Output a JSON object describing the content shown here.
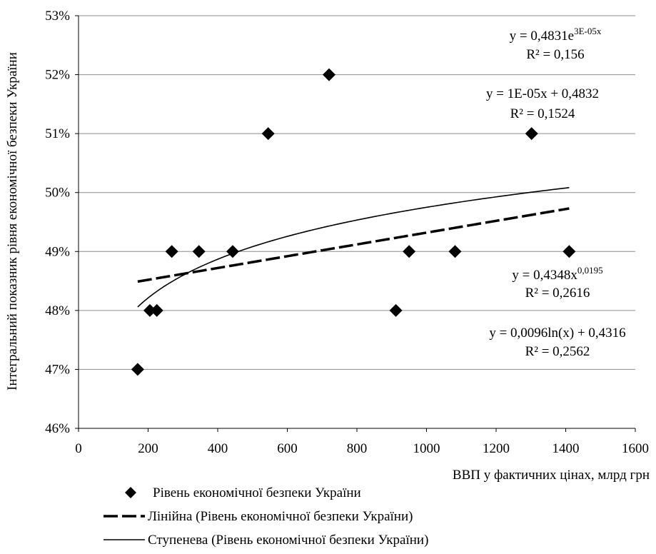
{
  "chart_data": {
    "type": "scatter",
    "title": "",
    "xlabel": "ВВП у фактичних цінах, млрд грн",
    "ylabel": "Інтегральний показник рівня економічної безпеки України",
    "xlim": [
      0,
      1600
    ],
    "ylim": [
      0.46,
      0.53
    ],
    "x_ticks": [
      0,
      200,
      400,
      600,
      800,
      1000,
      1200,
      1400,
      1600
    ],
    "x_tick_labels": [
      "0",
      "200",
      "400",
      "600",
      "800",
      "1000",
      "1200",
      "1400",
      "1600"
    ],
    "y_ticks": [
      0.46,
      0.47,
      0.48,
      0.49,
      0.5,
      0.51,
      0.52,
      0.53
    ],
    "y_tick_labels": [
      "46%",
      "47%",
      "48%",
      "49%",
      "50%",
      "51%",
      "52%",
      "53%"
    ],
    "grid": {
      "horizontal": true,
      "vertical": false
    },
    "series": [
      {
        "name": "Рівень економічної безпеки України",
        "marker": "diamond",
        "color": "#000000",
        "points": [
          [
            170,
            0.47
          ],
          [
            205,
            0.48
          ],
          [
            225,
            0.48
          ],
          [
            268,
            0.49
          ],
          [
            346,
            0.49
          ],
          [
            443,
            0.49
          ],
          [
            545,
            0.51
          ],
          [
            720,
            0.52
          ],
          [
            912,
            0.48
          ],
          [
            950,
            0.49
          ],
          [
            1082,
            0.49
          ],
          [
            1302,
            0.51
          ],
          [
            1410,
            0.49
          ]
        ]
      }
    ],
    "trendlines": [
      {
        "name": "Лінійна (Рівень економічної безпеки України)",
        "kind": "linear",
        "a": 1e-05,
        "b": 0.4832,
        "x_range": [
          170,
          1410
        ],
        "style": "dashed",
        "in_legend": true
      },
      {
        "name": "Ступенева (Рівень економічної безпеки України)",
        "kind": "power",
        "a": 0.4348,
        "b": 0.0195,
        "x_range": [
          170,
          1410
        ],
        "style": "solid",
        "in_legend": true
      }
    ],
    "equations": [
      {
        "main": "y = 0,4831e",
        "sup": "3E-05x",
        "r2": "R² = 0,156"
      },
      {
        "main": "y = 1E-05x + 0,4832",
        "sup": "",
        "r2": "R² = 0,1524"
      },
      {
        "main": "y = 0,4348x",
        "sup": "0,0195",
        "r2": "R² = 0,2616"
      },
      {
        "main": "y = 0,0096ln(x) + 0,4316",
        "sup": "",
        "r2": "R² = 0,2562"
      }
    ],
    "legend": {
      "position": "bottom",
      "entries": [
        {
          "label": "Рівень економічної безпеки України",
          "symbol": "diamond"
        },
        {
          "label": "Лінійна (Рівень економічної безпеки України)",
          "symbol": "dashed-line"
        },
        {
          "label": "Ступенева (Рівень економічної безпеки України)",
          "symbol": "solid-line"
        }
      ]
    }
  }
}
